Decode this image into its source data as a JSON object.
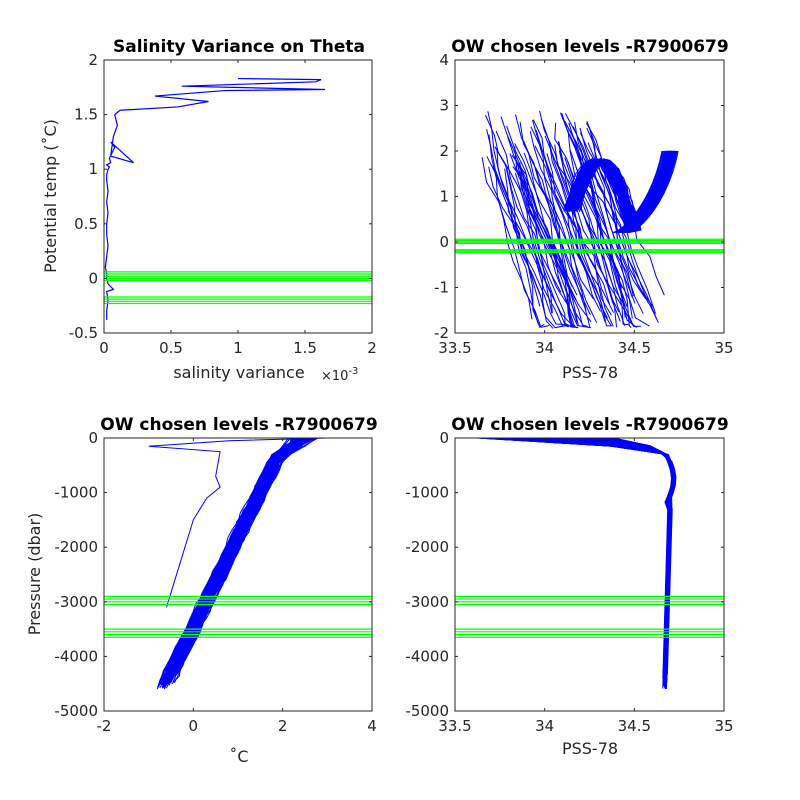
{
  "figure": {
    "background": "#ffffff",
    "profile_color": "#0000ff",
    "level_color": "#00ff00"
  },
  "chart_data": [
    {
      "id": "var",
      "type": "line",
      "title": "Salinity Variance on Theta",
      "xlabel": "salinity variance",
      "x_exponent_label": "×10",
      "x_exponent_power": "-3",
      "ylabel": "Potential temp (˚C)",
      "xlim": [
        0,
        2
      ],
      "ylim": [
        -0.5,
        2
      ],
      "xticks": [
        0,
        0.5,
        1,
        1.5,
        2
      ],
      "xtick_labels": [
        "0",
        "0.5",
        "1",
        "1.5",
        "2"
      ],
      "yticks": [
        -0.5,
        0,
        0.5,
        1,
        1.5,
        2
      ],
      "ytick_labels": [
        "-0.5",
        "0",
        "0.5",
        "1",
        "1.5",
        "2"
      ],
      "x_scale_factor": 0.001,
      "series": [
        {
          "x": [
            0.02,
            0.02,
            0.03,
            0.02,
            0.07,
            0.03,
            0.02,
            0.02,
            0.01,
            0.02,
            0.03,
            0.02,
            0.02,
            0.03,
            0.02,
            0.03,
            0.02,
            0.02,
            0.03,
            0.04,
            0.02,
            0.05,
            0.04,
            0.08,
            0.05,
            0.22,
            0.05,
            0.07,
            0.1,
            0.08,
            0.12,
            0.55,
            0.78,
            0.38,
            0.9,
            1.65,
            0.58,
            1.58,
            1.62,
            1.0
          ],
          "y": [
            -0.38,
            -0.3,
            -0.2,
            -0.12,
            -0.1,
            -0.05,
            0,
            0.05,
            0.1,
            0.2,
            0.3,
            0.4,
            0.5,
            0.6,
            0.7,
            0.8,
            0.9,
            0.95,
            1.0,
            1.02,
            1.04,
            1.06,
            1.1,
            1.2,
            1.25,
            1.06,
            1.12,
            1.3,
            1.4,
            1.5,
            1.54,
            1.57,
            1.62,
            1.67,
            1.72,
            1.73,
            1.76,
            1.8,
            1.82,
            1.83
          ]
        }
      ],
      "levels_y": [
        -0.23,
        -0.21,
        -0.19,
        -0.17,
        -0.02,
        0.0,
        0.02,
        0.04,
        0.06
      ]
    },
    {
      "id": "ts",
      "type": "line",
      "title": "OW chosen levels -R7900679",
      "xlabel": "PSS-78",
      "ylabel": "",
      "xlim": [
        33.5,
        35
      ],
      "ylim": [
        -2,
        4
      ],
      "xticks": [
        33.5,
        34,
        34.5,
        35
      ],
      "xtick_labels": [
        "33.5",
        "34",
        "34.5",
        "35"
      ],
      "yticks": [
        -2,
        -1,
        0,
        1,
        2,
        3,
        4
      ],
      "ytick_labels": [
        "-2",
        "-1",
        "0",
        "1",
        "2",
        "3",
        "4"
      ],
      "levels_y": [
        -0.23,
        -0.2,
        -0.17,
        -0.03,
        0.0,
        0.03,
        0.06
      ]
    },
    {
      "id": "tp",
      "type": "line",
      "title": "OW chosen levels -R7900679",
      "xlabel": "˚C",
      "ylabel": "Pressure (dbar)",
      "xlim": [
        -2,
        4
      ],
      "ylim": [
        -5000,
        0
      ],
      "xticks": [
        -2,
        0,
        2,
        4
      ],
      "xtick_labels": [
        "-2",
        "0",
        "2",
        "4"
      ],
      "yticks": [
        -5000,
        -4000,
        -3000,
        -2000,
        -1000,
        0
      ],
      "ytick_labels": [
        "-5000",
        "-4000",
        "-3000",
        "-2000",
        "-1000",
        "0"
      ],
      "levels_y": [
        -2900,
        -2950,
        -3000,
        -3050,
        -3500,
        -3550,
        -3600,
        -3650
      ]
    },
    {
      "id": "sp",
      "type": "line",
      "title": "OW chosen levels -R7900679",
      "xlabel": "PSS-78",
      "ylabel": "",
      "xlim": [
        33.5,
        35
      ],
      "ylim": [
        -5000,
        0
      ],
      "xticks": [
        33.5,
        34,
        34.5,
        35
      ],
      "xtick_labels": [
        "33.5",
        "34",
        "34.5",
        "35"
      ],
      "yticks": [
        -5000,
        -4000,
        -3000,
        -2000,
        -1000,
        0
      ],
      "ytick_labels": [
        "-5000",
        "-4000",
        "-3000",
        "-2000",
        "-1000",
        "0"
      ],
      "levels_y": [
        -2900,
        -2950,
        -3000,
        -3050,
        -3500,
        -3550,
        -3600,
        -3650
      ]
    }
  ]
}
